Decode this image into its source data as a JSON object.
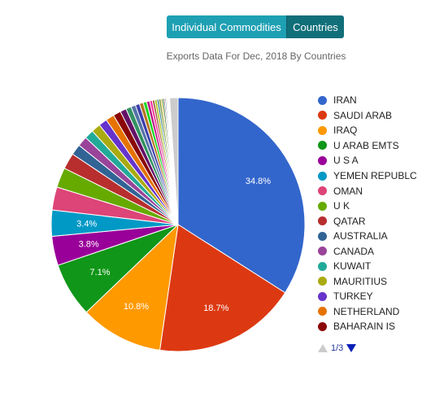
{
  "tabs": {
    "individual_label": "Individual Commodities",
    "countries_label": "Countries",
    "active": "Countries"
  },
  "chart_data": {
    "type": "pie",
    "title": "Exports Data For Dec, 2018 By Countries",
    "slices": [
      {
        "name": "IRAN",
        "value": 34.8,
        "label": "34.8%",
        "color": "#3366cc"
      },
      {
        "name": "SAUDI ARAB",
        "value": 18.7,
        "label": "18.7%",
        "color": "#dc3912"
      },
      {
        "name": "IRAQ",
        "value": 10.8,
        "label": "10.8%",
        "color": "#ff9900"
      },
      {
        "name": "U ARAB EMTS",
        "value": 7.1,
        "label": "7.1%",
        "color": "#109618"
      },
      {
        "name": "U S A",
        "value": 3.8,
        "label": "3.8%",
        "color": "#990099"
      },
      {
        "name": "YEMEN REPUBLC",
        "value": 3.4,
        "label": "3.4%",
        "color": "#0099c6"
      },
      {
        "name": "OMAN",
        "value": 3.0,
        "label": "",
        "color": "#dd4477"
      },
      {
        "name": "U K",
        "value": 2.6,
        "label": "",
        "color": "#66aa00"
      },
      {
        "name": "QATAR",
        "value": 2.1,
        "label": "",
        "color": "#b82e2e"
      },
      {
        "name": "AUSTRALIA",
        "value": 1.4,
        "label": "",
        "color": "#316395"
      },
      {
        "name": "CANADA",
        "value": 1.3,
        "label": "",
        "color": "#994499"
      },
      {
        "name": "KUWAIT",
        "value": 1.2,
        "label": "",
        "color": "#22aa99"
      },
      {
        "name": "MAURITIUS",
        "value": 1.2,
        "label": "",
        "color": "#aaaa11"
      },
      {
        "name": "TURKEY",
        "value": 1.1,
        "label": "",
        "color": "#6633cc"
      },
      {
        "name": "NETHERLAND",
        "value": 1.1,
        "label": "",
        "color": "#e67300"
      },
      {
        "name": "BAHARAIN IS",
        "value": 1.0,
        "label": "",
        "color": "#8b0707"
      },
      {
        "name": "",
        "value": 0.8,
        "label": "",
        "color": "#651067"
      },
      {
        "name": "",
        "value": 0.7,
        "label": "",
        "color": "#329262"
      },
      {
        "name": "",
        "value": 0.6,
        "label": "",
        "color": "#5574a6"
      },
      {
        "name": "",
        "value": 0.55,
        "label": "",
        "color": "#3b3eac"
      },
      {
        "name": "",
        "value": 0.5,
        "label": "",
        "color": "#b77322"
      },
      {
        "name": "",
        "value": 0.45,
        "label": "",
        "color": "#16d620"
      },
      {
        "name": "",
        "value": 0.4,
        "label": "",
        "color": "#b91383"
      },
      {
        "name": "",
        "value": 0.35,
        "label": "",
        "color": "#f4359e"
      },
      {
        "name": "",
        "value": 0.3,
        "label": "",
        "color": "#9c5935"
      },
      {
        "name": "",
        "value": 0.3,
        "label": "",
        "color": "#a9c413"
      },
      {
        "name": "",
        "value": 0.25,
        "label": "",
        "color": "#2a778d"
      },
      {
        "name": "",
        "value": 0.25,
        "label": "",
        "color": "#668d1c"
      },
      {
        "name": "",
        "value": 0.2,
        "label": "",
        "color": "#bea413"
      },
      {
        "name": "",
        "value": 0.2,
        "label": "",
        "color": "#0c5922"
      },
      {
        "name": "",
        "value": 0.15,
        "label": "",
        "color": "#743411"
      },
      {
        "name": "",
        "value": 0.15,
        "label": "",
        "color": "#3366cc"
      },
      {
        "name": "",
        "value": 0.12,
        "label": "",
        "color": "#dc3912"
      },
      {
        "name": "",
        "value": 0.12,
        "label": "",
        "color": "#ff9900"
      },
      {
        "name": "",
        "value": 0.1,
        "label": "",
        "color": "#109618"
      },
      {
        "name": "",
        "value": 0.1,
        "label": "",
        "color": "#990099"
      },
      {
        "name": "",
        "value": 1.1,
        "label": "",
        "color": "#cccccc"
      }
    ],
    "legend_position": "right"
  },
  "legend": {
    "page": "1/3"
  }
}
